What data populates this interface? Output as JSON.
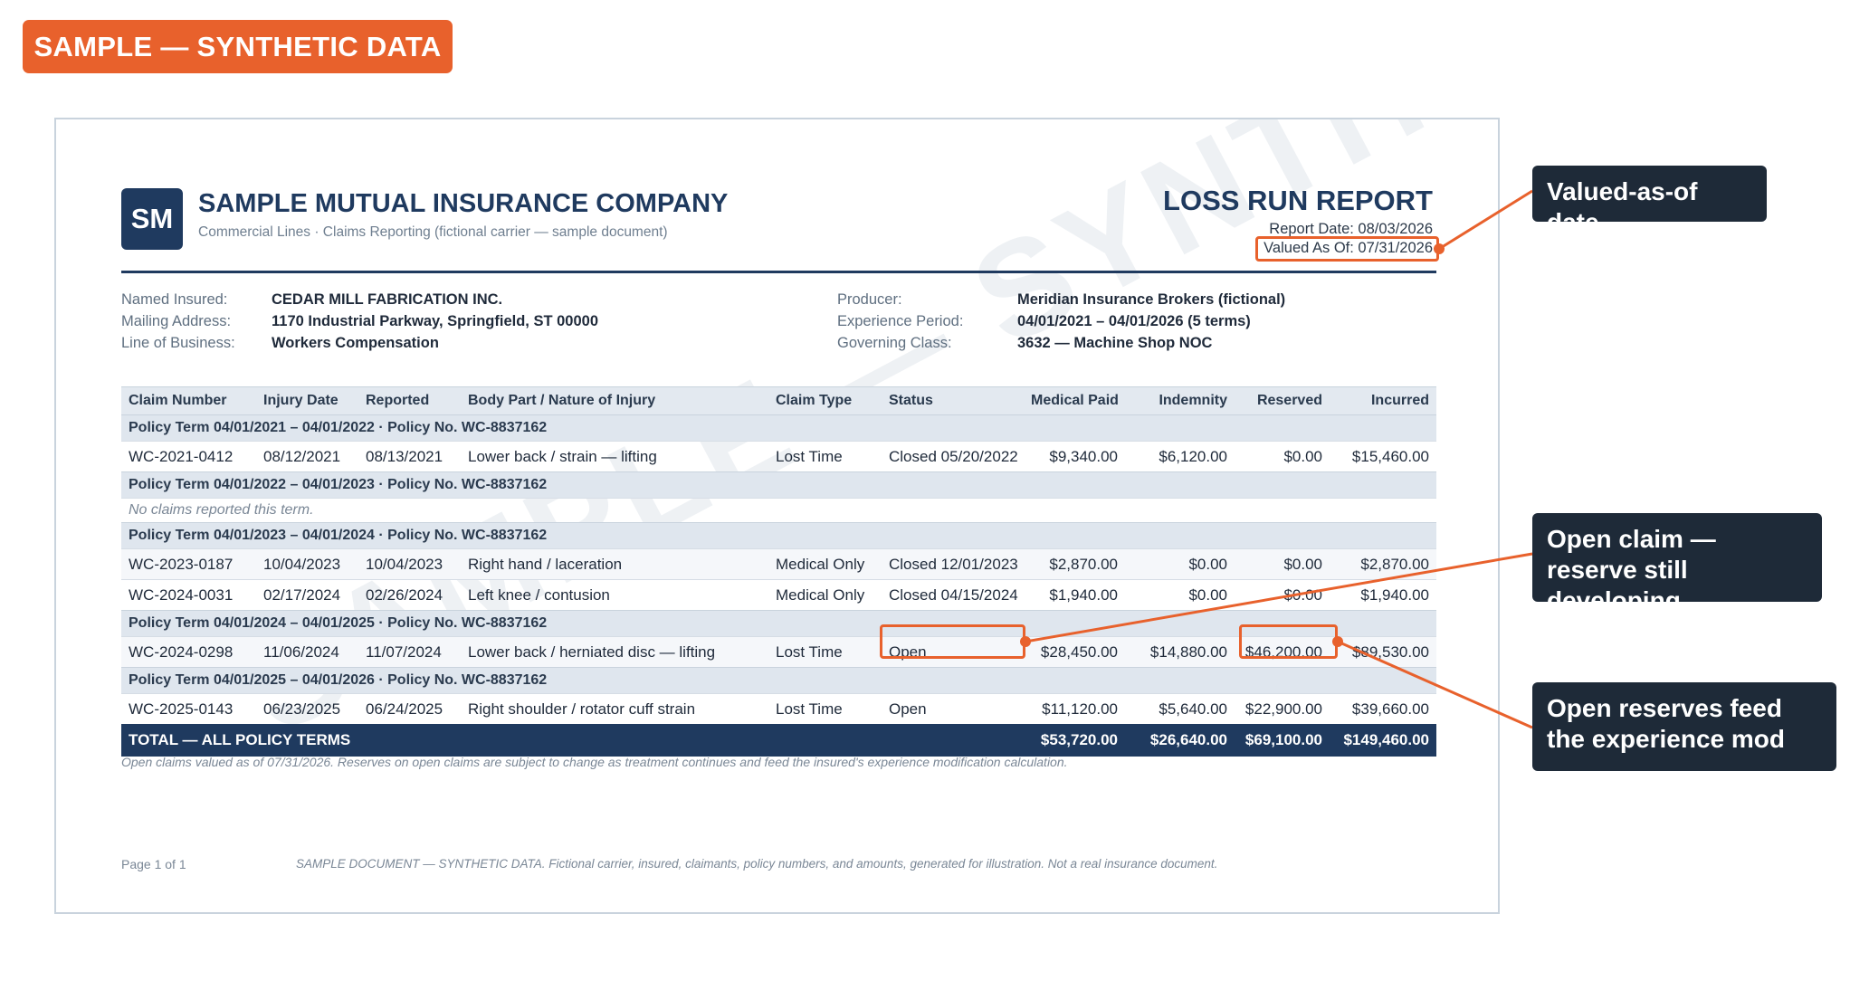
{
  "badge": "SAMPLE — SYNTHETIC DATA",
  "header": {
    "logo": "SM",
    "company": "SAMPLE MUTUAL INSURANCE COMPANY",
    "subtitle": "Commercial Lines · Claims Reporting  (fictional carrier — sample document)",
    "report_title": "LOSS RUN REPORT",
    "report_date": "Report Date: 08/03/2026",
    "valued_as_of": "Valued As Of: 07/31/2026"
  },
  "watermark": "SAMPLE — SYNTHETIC DATA",
  "insured": {
    "named_insured_label": "Named Insured:",
    "named_insured": "CEDAR MILL FABRICATION INC.",
    "address_label": "Mailing Address:",
    "address": "1170 Industrial Parkway, Springfield, ST 00000",
    "lob_label": "Line of Business:",
    "lob": "Workers Compensation",
    "producer_label": "Producer:",
    "producer": "Meridian Insurance Brokers (fictional)",
    "period_label": "Experience Period:",
    "period": "04/01/2021 – 04/01/2026 (5 terms)",
    "class_label": "Governing Class:",
    "class": "3632 — Machine Shop NOC"
  },
  "table": {
    "columns": [
      "Claim Number",
      "Injury Date",
      "Reported",
      "Body Part / Nature of Injury",
      "Claim Type",
      "Status",
      "Medical Paid",
      "Indemnity",
      "Reserved",
      "Incurred"
    ],
    "terms": [
      {
        "label": "Policy Term 04/01/2021 – 04/01/2022  ·  Policy No. WC-8837162",
        "claims": [
          [
            "WC-2021-0412",
            "08/12/2021",
            "08/13/2021",
            "Lower back / strain — lifting",
            "Lost Time",
            "Closed 05/20/2022",
            "$9,340.00",
            "$6,120.00",
            "$0.00",
            "$15,460.00"
          ]
        ]
      },
      {
        "label": "Policy Term 04/01/2022 – 04/01/2023  ·  Policy No. WC-8837162",
        "empty": "No claims reported this term."
      },
      {
        "label": "Policy Term 04/01/2023 – 04/01/2024  ·  Policy No. WC-8837162",
        "claims": [
          [
            "WC-2023-0187",
            "10/04/2023",
            "10/04/2023",
            "Right hand / laceration",
            "Medical Only",
            "Closed 12/01/2023",
            "$2,870.00",
            "$0.00",
            "$0.00",
            "$2,870.00"
          ],
          [
            "WC-2024-0031",
            "02/17/2024",
            "02/26/2024",
            "Left knee / contusion",
            "Medical Only",
            "Closed 04/15/2024",
            "$1,940.00",
            "$0.00",
            "$0.00",
            "$1,940.00"
          ]
        ]
      },
      {
        "label": "Policy Term 04/01/2024 – 04/01/2025  ·  Policy No. WC-8837162",
        "claims": [
          [
            "WC-2024-0298",
            "11/06/2024",
            "11/07/2024",
            "Lower back / herniated disc — lifting",
            "Lost Time",
            "Open",
            "$28,450.00",
            "$14,880.00",
            "$46,200.00",
            "$89,530.00"
          ]
        ]
      },
      {
        "label": "Policy Term 04/01/2025 – 04/01/2026  ·  Policy No. WC-8837162",
        "claims": [
          [
            "WC-2025-0143",
            "06/23/2025",
            "06/24/2025",
            "Right shoulder / rotator cuff strain",
            "Lost Time",
            "Open",
            "$11,120.00",
            "$5,640.00",
            "$22,900.00",
            "$39,660.00"
          ]
        ]
      }
    ],
    "total": {
      "label": "TOTAL — ALL POLICY TERMS",
      "medical": "$53,720.00",
      "indemnity": "$26,640.00",
      "reserved": "$69,100.00",
      "incurred": "$149,460.00"
    }
  },
  "footnote": "Open claims valued as of 07/31/2026. Reserves on open claims are subject to change as treatment continues and feed the insured's experience modification calculation.",
  "footer": {
    "page": "Page 1 of 1",
    "disclaimer": "SAMPLE DOCUMENT — SYNTHETIC DATA. Fictional carrier, insured, claimants, policy numbers, and amounts, generated for illustration. Not a real insurance document."
  },
  "callouts": {
    "valued": "Valued-as-of date",
    "open_claim": "Open claim — reserve still developing",
    "open_reserves": "Open reserves feed the experience mod"
  },
  "colors": {
    "accent": "#e8612c",
    "navy": "#1f3a5f",
    "callout_bg": "#1e2a38"
  }
}
